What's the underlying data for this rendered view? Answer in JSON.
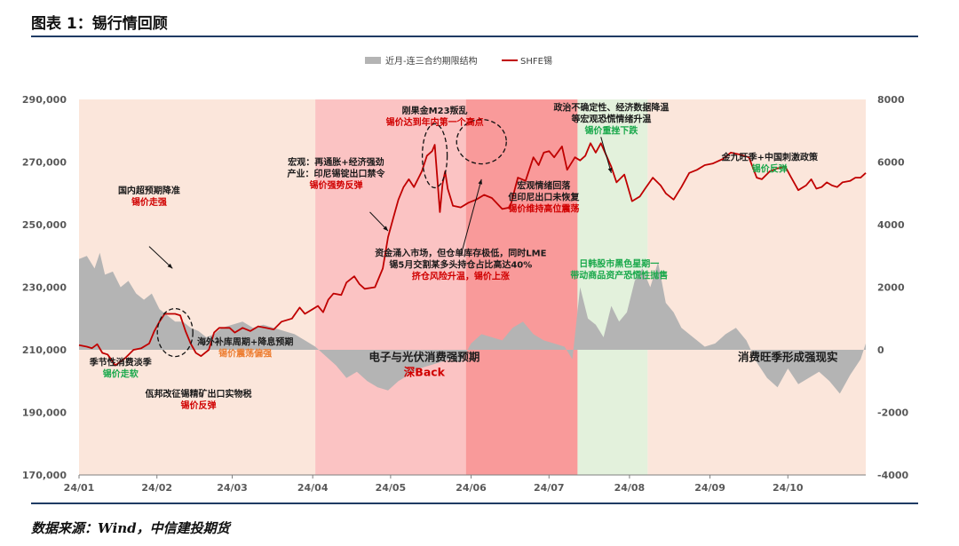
{
  "title": "图表 1：锡行情回顾",
  "source": "数据来源：Wind，中信建投期货",
  "colors": {
    "line": "#c00000",
    "area": "#b4b4b4",
    "zone_light": "#fbe6db",
    "zone_pink": "#fbc3c3",
    "zone_red": "#f99a9a",
    "zone_green": "#e3f1dc",
    "note_red": "#d00000",
    "note_green": "#18a84a",
    "note_orange": "#ed7d31",
    "axis_text": "#595959"
  },
  "chart_data": {
    "type": "area+line",
    "legend": [
      "近月-连三合约期限结构",
      "SHFE锡"
    ],
    "legend_position": "top-center",
    "x_tick_labels": [
      "24/01",
      "24/02",
      "24/03",
      "24/04",
      "24/05",
      "24/06",
      "24/07",
      "24/08",
      "24/09",
      "24/10"
    ],
    "y_left": {
      "min": 170000,
      "max": 290000,
      "ticks": [
        "290,000",
        "270,000",
        "250,000",
        "230,000",
        "210,000",
        "190,000",
        "170,000"
      ]
    },
    "y_right": {
      "min": -4000,
      "max": 8000,
      "ticks": [
        "8000",
        "6000",
        "4000",
        "2000",
        "0",
        "-2000",
        "-4000"
      ]
    },
    "x_range": [
      "2024-01-02",
      "2024-10-31"
    ],
    "shaded_periods": [
      {
        "from": "2024-01-02",
        "to": "2024-04-02",
        "tone": "zone_light"
      },
      {
        "from": "2024-04-02",
        "to": "2024-05-30",
        "tone": "zone_pink"
      },
      {
        "from": "2024-05-30",
        "to": "2024-07-12",
        "tone": "zone_red"
      },
      {
        "from": "2024-07-12",
        "to": "2024-08-08",
        "tone": "zone_green"
      },
      {
        "from": "2024-08-08",
        "to": "2024-10-31",
        "tone": "zone_light"
      }
    ],
    "shfe_tin": [
      [
        "2024-01-02",
        211500
      ],
      [
        "2024-01-05",
        211000
      ],
      [
        "2024-01-07",
        210500
      ],
      [
        "2024-01-09",
        211800
      ],
      [
        "2024-01-11",
        209000
      ],
      [
        "2024-01-13",
        208500
      ],
      [
        "2024-01-16",
        205000
      ],
      [
        "2024-01-20",
        207500
      ],
      [
        "2024-01-23",
        210000
      ],
      [
        "2024-01-26",
        210500
      ],
      [
        "2024-01-29",
        212000
      ],
      [
        "2024-01-31",
        216000
      ],
      [
        "2024-02-02",
        219000
      ],
      [
        "2024-02-04",
        221500
      ],
      [
        "2024-02-08",
        221500
      ],
      [
        "2024-02-10",
        221000
      ],
      [
        "2024-02-12",
        216000
      ],
      [
        "2024-02-14",
        212000
      ],
      [
        "2024-02-16",
        209000
      ],
      [
        "2024-02-18",
        208000
      ],
      [
        "2024-02-21",
        210000
      ],
      [
        "2024-02-23",
        215500
      ],
      [
        "2024-02-25",
        217000
      ],
      [
        "2024-02-29",
        217000
      ],
      [
        "2024-03-02",
        215500
      ],
      [
        "2024-03-05",
        217000
      ],
      [
        "2024-03-08",
        216000
      ],
      [
        "2024-03-11",
        217500
      ],
      [
        "2024-03-14",
        217000
      ],
      [
        "2024-03-17",
        216500
      ],
      [
        "2024-03-20",
        219000
      ],
      [
        "2024-03-24",
        220000
      ],
      [
        "2024-03-27",
        223500
      ],
      [
        "2024-03-29",
        221500
      ],
      [
        "2024-04-01",
        223000
      ],
      [
        "2024-04-03",
        224000
      ],
      [
        "2024-04-05",
        222000
      ],
      [
        "2024-04-07",
        226000
      ],
      [
        "2024-04-09",
        228000
      ],
      [
        "2024-04-12",
        227500
      ],
      [
        "2024-04-14",
        231500
      ],
      [
        "2024-04-17",
        233500
      ],
      [
        "2024-04-19",
        231000
      ],
      [
        "2024-04-21",
        229500
      ],
      [
        "2024-04-25",
        230000
      ],
      [
        "2024-04-28",
        236000
      ],
      [
        "2024-04-30",
        246000
      ],
      [
        "2024-05-02",
        252000
      ],
      [
        "2024-05-04",
        258000
      ],
      [
        "2024-05-06",
        262000
      ],
      [
        "2024-05-08",
        264500
      ],
      [
        "2024-05-10",
        262000
      ],
      [
        "2024-05-13",
        267000
      ],
      [
        "2024-05-15",
        272000
      ],
      [
        "2024-05-17",
        273500
      ],
      [
        "2024-05-18",
        275500
      ],
      [
        "2024-05-20",
        254000
      ],
      [
        "2024-05-21",
        263000
      ],
      [
        "2024-05-22",
        267000
      ],
      [
        "2024-05-23",
        261500
      ],
      [
        "2024-05-25",
        256000
      ],
      [
        "2024-05-28",
        255500
      ],
      [
        "2024-05-31",
        257000
      ],
      [
        "2024-06-03",
        258000
      ],
      [
        "2024-06-06",
        259500
      ],
      [
        "2024-06-09",
        258500
      ],
      [
        "2024-06-13",
        255000
      ],
      [
        "2024-06-16",
        255500
      ],
      [
        "2024-06-19",
        265000
      ],
      [
        "2024-06-22",
        264000
      ],
      [
        "2024-06-25",
        271500
      ],
      [
        "2024-06-27",
        269000
      ],
      [
        "2024-06-29",
        273000
      ],
      [
        "2024-07-01",
        273500
      ],
      [
        "2024-07-03",
        271500
      ],
      [
        "2024-07-06",
        275000
      ],
      [
        "2024-07-08",
        267500
      ],
      [
        "2024-07-11",
        271500
      ],
      [
        "2024-07-13",
        270500
      ],
      [
        "2024-07-15",
        272000
      ],
      [
        "2024-07-17",
        276000
      ],
      [
        "2024-07-19",
        273000
      ],
      [
        "2024-07-21",
        276000
      ],
      [
        "2024-07-25",
        268500
      ],
      [
        "2024-07-27",
        263500
      ],
      [
        "2024-07-30",
        266000
      ],
      [
        "2024-08-02",
        257500
      ],
      [
        "2024-08-05",
        259000
      ],
      [
        "2024-08-07",
        261500
      ],
      [
        "2024-08-10",
        265000
      ],
      [
        "2024-08-13",
        262500
      ],
      [
        "2024-08-15",
        260000
      ],
      [
        "2024-08-18",
        258000
      ],
      [
        "2024-08-21",
        262000
      ],
      [
        "2024-08-24",
        266500
      ],
      [
        "2024-08-27",
        267500
      ],
      [
        "2024-08-30",
        269000
      ],
      [
        "2024-09-02",
        269500
      ],
      [
        "2024-09-06",
        271000
      ],
      [
        "2024-09-09",
        273000
      ],
      [
        "2024-09-12",
        272500
      ],
      [
        "2024-09-16",
        271500
      ],
      [
        "2024-09-19",
        265000
      ],
      [
        "2024-09-21",
        264500
      ],
      [
        "2024-09-24",
        267000
      ],
      [
        "2024-09-27",
        268000
      ],
      [
        "2024-09-30",
        268500
      ],
      [
        "2024-10-02",
        265500
      ],
      [
        "2024-10-05",
        261000
      ],
      [
        "2024-10-08",
        262500
      ],
      [
        "2024-10-10",
        264500
      ],
      [
        "2024-10-12",
        261500
      ],
      [
        "2024-10-14",
        262000
      ],
      [
        "2024-10-16",
        263500
      ],
      [
        "2024-10-18",
        262500
      ],
      [
        "2024-10-20",
        262000
      ],
      [
        "2024-10-22",
        263500
      ],
      [
        "2024-10-25",
        264000
      ],
      [
        "2024-10-27",
        265000
      ],
      [
        "2024-10-29",
        265000
      ],
      [
        "2024-10-31",
        266500
      ]
    ],
    "spread": [
      [
        "2024-01-02",
        2900
      ],
      [
        "2024-01-05",
        3000
      ],
      [
        "2024-01-08",
        2600
      ],
      [
        "2024-01-10",
        3100
      ],
      [
        "2024-01-12",
        2400
      ],
      [
        "2024-01-15",
        2500
      ],
      [
        "2024-01-18",
        2000
      ],
      [
        "2024-01-21",
        2200
      ],
      [
        "2024-01-24",
        1800
      ],
      [
        "2024-01-27",
        1600
      ],
      [
        "2024-01-30",
        1800
      ],
      [
        "2024-02-02",
        1300
      ],
      [
        "2024-02-05",
        1100
      ],
      [
        "2024-02-08",
        900
      ],
      [
        "2024-02-11",
        900
      ],
      [
        "2024-02-14",
        700
      ],
      [
        "2024-02-17",
        600
      ],
      [
        "2024-02-20",
        400
      ],
      [
        "2024-02-23",
        500
      ],
      [
        "2024-02-26",
        700
      ],
      [
        "2024-03-01",
        800
      ],
      [
        "2024-03-05",
        900
      ],
      [
        "2024-03-09",
        700
      ],
      [
        "2024-03-13",
        800
      ],
      [
        "2024-03-17",
        700
      ],
      [
        "2024-03-21",
        600
      ],
      [
        "2024-03-25",
        500
      ],
      [
        "2024-03-29",
        300
      ],
      [
        "2024-04-02",
        100
      ],
      [
        "2024-04-06",
        -200
      ],
      [
        "2024-04-10",
        -500
      ],
      [
        "2024-04-14",
        -900
      ],
      [
        "2024-04-18",
        -700
      ],
      [
        "2024-04-22",
        -1000
      ],
      [
        "2024-04-26",
        -1200
      ],
      [
        "2024-04-30",
        -1300
      ],
      [
        "2024-05-04",
        -1000
      ],
      [
        "2024-05-08",
        -800
      ],
      [
        "2024-05-12",
        -600
      ],
      [
        "2024-05-16",
        -500
      ],
      [
        "2024-05-20",
        -400
      ],
      [
        "2024-05-24",
        -300
      ],
      [
        "2024-05-28",
        -400
      ],
      [
        "2024-06-01",
        200
      ],
      [
        "2024-06-05",
        500
      ],
      [
        "2024-06-09",
        400
      ],
      [
        "2024-06-13",
        300
      ],
      [
        "2024-06-17",
        700
      ],
      [
        "2024-06-21",
        900
      ],
      [
        "2024-06-25",
        500
      ],
      [
        "2024-06-29",
        300
      ],
      [
        "2024-07-03",
        200
      ],
      [
        "2024-07-07",
        100
      ],
      [
        "2024-07-10",
        -300
      ],
      [
        "2024-07-13",
        2000
      ],
      [
        "2024-07-16",
        1000
      ],
      [
        "2024-07-19",
        800
      ],
      [
        "2024-07-22",
        400
      ],
      [
        "2024-07-25",
        1400
      ],
      [
        "2024-07-28",
        900
      ],
      [
        "2024-07-31",
        1200
      ],
      [
        "2024-08-03",
        2200
      ],
      [
        "2024-08-06",
        2600
      ],
      [
        "2024-08-09",
        2000
      ],
      [
        "2024-08-12",
        2800
      ],
      [
        "2024-08-15",
        1500
      ],
      [
        "2024-08-18",
        1200
      ],
      [
        "2024-08-21",
        700
      ],
      [
        "2024-08-24",
        500
      ],
      [
        "2024-08-27",
        300
      ],
      [
        "2024-08-30",
        100
      ],
      [
        "2024-09-03",
        200
      ],
      [
        "2024-09-07",
        500
      ],
      [
        "2024-09-11",
        700
      ],
      [
        "2024-09-15",
        300
      ],
      [
        "2024-09-19",
        -400
      ],
      [
        "2024-09-23",
        -900
      ],
      [
        "2024-09-27",
        -1200
      ],
      [
        "2024-10-01",
        -600
      ],
      [
        "2024-10-05",
        -1100
      ],
      [
        "2024-10-09",
        -900
      ],
      [
        "2024-10-13",
        -700
      ],
      [
        "2024-10-17",
        -1000
      ],
      [
        "2024-10-21",
        -1400
      ],
      [
        "2024-10-25",
        -800
      ],
      [
        "2024-10-29",
        -300
      ],
      [
        "2024-10-31",
        200
      ]
    ],
    "annotations": [
      {
        "lines": [
          "国内超预期降准",
          "锡价走强"
        ],
        "tones": [
          "dark",
          "red"
        ],
        "at": [
          "2024-01-29",
          260000
        ]
      },
      {
        "lines": [
          "季节性消费淡季",
          "锡价走软"
        ],
        "tones": [
          "dark",
          "green"
        ],
        "at": [
          "2024-01-18",
          205000
        ]
      },
      {
        "lines": [
          "佤邦改征锡精矿出口实物税",
          "锡价反弹"
        ],
        "tones": [
          "dark",
          "red"
        ],
        "at": [
          "2024-02-17",
          195000
        ]
      },
      {
        "lines": [
          "海外补库周期+降息预期",
          "锡价震荡偏强"
        ],
        "tones": [
          "dark",
          "orange"
        ],
        "at": [
          "2024-03-06",
          211500
        ]
      },
      {
        "lines": [
          "宏观：再通胀+经济强劲",
          "产业：印尼锡锭出口禁令",
          "锡价强势反弹"
        ],
        "tones": [
          "dark",
          "dark",
          "red"
        ],
        "at": [
          "2024-04-10",
          269000
        ]
      },
      {
        "lines": [
          "刚果金M23叛乱",
          "锡价达到年内第一个高点"
        ],
        "tones": [
          "dark",
          "red"
        ],
        "at": [
          "2024-05-18",
          285500
        ]
      },
      {
        "lines": [
          "资金涌入市场，但仓单库存极低，同时LME",
          "锡5月交割某多头持仓占比高达40%",
          "挤仓风险升温，锡价上涨"
        ],
        "tones": [
          "dark",
          "dark",
          "red"
        ],
        "at": [
          "2024-05-28",
          240000
        ]
      },
      {
        "lines": [
          "电子与光伏消费强预期",
          "深Back"
        ],
        "tones": [
          "dark",
          "red"
        ],
        "at": [
          "2024-05-14",
          206500
        ]
      },
      {
        "lines": [
          "宏观情绪回落",
          "但印尼出口未恢复",
          "锡价维持高位震荡"
        ],
        "tones": [
          "dark",
          "dark",
          "red"
        ],
        "at": [
          "2024-06-29",
          261500
        ]
      },
      {
        "lines": [
          "政治不确定性、经济数据降温",
          "等宏观恐慌情绪升温",
          "锡价重挫下跌"
        ],
        "tones": [
          "dark",
          "dark",
          "green"
        ],
        "at": [
          "2024-07-25",
          286500
        ]
      },
      {
        "lines": [
          "日韩股市黑色星期一",
          "带动商品资产恐慌性抛售"
        ],
        "tones": [
          "green",
          "green"
        ],
        "at": [
          "2024-07-28",
          236500
        ]
      },
      {
        "lines": [
          "金九旺季+中国刺激政策",
          "锡价反弹"
        ],
        "tones": [
          "dark",
          "green"
        ],
        "at": [
          "2024-09-24",
          270500
        ]
      },
      {
        "lines": [
          "消费旺季形成强现实"
        ],
        "tones": [
          "dark"
        ],
        "at": [
          "2024-10-01",
          206500
        ]
      }
    ],
    "circled_points": [
      {
        "at": [
          "2024-02-08",
          215500
        ]
      },
      {
        "at": [
          "2024-05-18",
          272000
        ]
      },
      {
        "at": [
          "2024-06-05",
          276500
        ]
      }
    ]
  }
}
